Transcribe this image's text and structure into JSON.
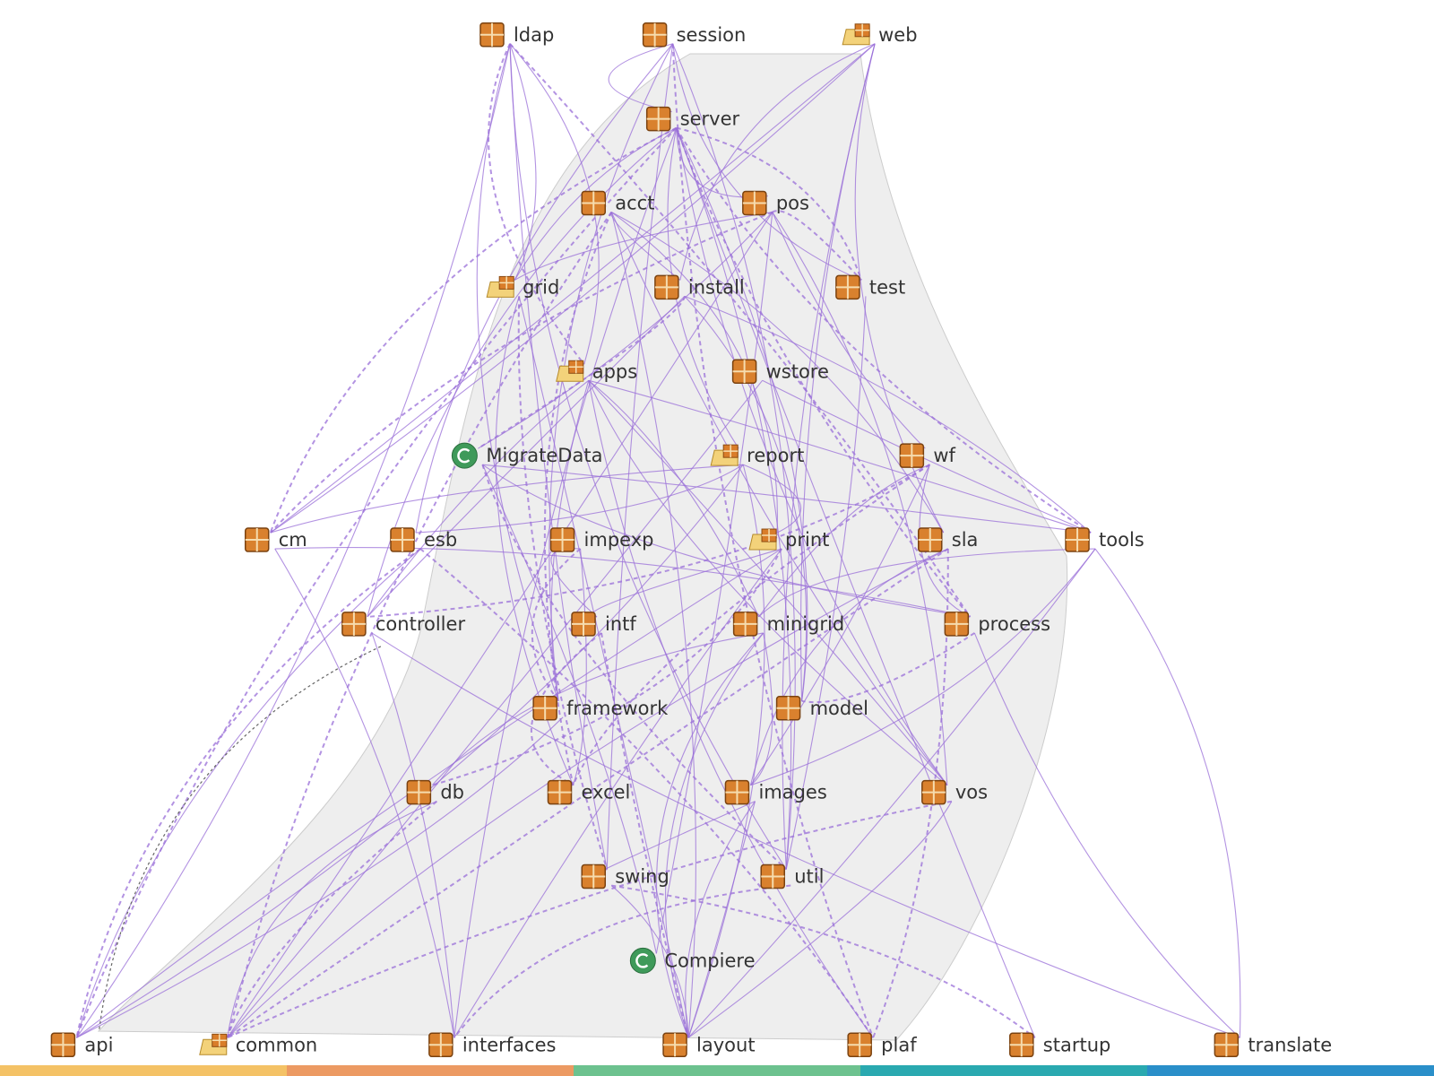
{
  "nodes": [
    {
      "label": "ldap"
    },
    {
      "label": "session"
    },
    {
      "label": "web"
    },
    {
      "label": "server"
    },
    {
      "label": "acct"
    },
    {
      "label": "pos"
    },
    {
      "label": "grid"
    },
    {
      "label": "install"
    },
    {
      "label": "test"
    },
    {
      "label": "apps"
    },
    {
      "label": "wstore"
    },
    {
      "label": "MigrateData"
    },
    {
      "label": "report"
    },
    {
      "label": "wf"
    },
    {
      "label": "cm"
    },
    {
      "label": "esb"
    },
    {
      "label": "impexp"
    },
    {
      "label": "print"
    },
    {
      "label": "sla"
    },
    {
      "label": "tools"
    },
    {
      "label": "controller"
    },
    {
      "label": "intf"
    },
    {
      "label": "minigrid"
    },
    {
      "label": "process"
    },
    {
      "label": "framework"
    },
    {
      "label": "model"
    },
    {
      "label": "db"
    },
    {
      "label": "excel"
    },
    {
      "label": "images"
    },
    {
      "label": "vos"
    },
    {
      "label": "swing"
    },
    {
      "label": "util"
    },
    {
      "label": "Compiere"
    },
    {
      "label": "api"
    },
    {
      "label": "common"
    },
    {
      "label": "interfaces"
    },
    {
      "label": "layout"
    },
    {
      "label": "plaf"
    },
    {
      "label": "startup"
    },
    {
      "label": "translate"
    }
  ]
}
